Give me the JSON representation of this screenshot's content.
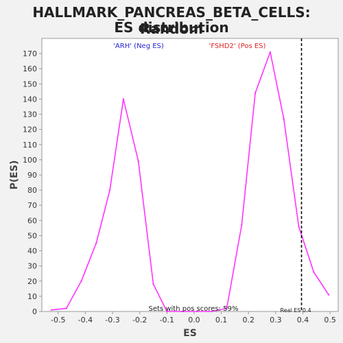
{
  "title_line1": "HALLMARK_PANCREAS_BETA_CELLS: Random",
  "title_line2": "ES distribution",
  "chart_data": {
    "type": "line",
    "title": "HALLMARK_PANCREAS_BETA_CELLS: Random ES distribution",
    "xlabel": "ES",
    "ylabel": "P(ES)",
    "xlim": [
      -0.56,
      0.53
    ],
    "ylim": [
      0,
      180
    ],
    "x_ticks": [
      "-0.5",
      "-0.4",
      "-0.3",
      "-0.2",
      "-0.1",
      "0.0",
      "0.1",
      "0.2",
      "0.3",
      "0.4",
      "0.5"
    ],
    "y_ticks": [
      "0",
      "10",
      "20",
      "30",
      "40",
      "50",
      "60",
      "70",
      "80",
      "90",
      "100",
      "110",
      "120",
      "130",
      "140",
      "150",
      "160",
      "170"
    ],
    "grid": false,
    "series": [
      {
        "color": "#ff33ff",
        "x": [
          -0.525,
          -0.47,
          -0.415,
          -0.36,
          -0.31,
          -0.26,
          -0.205,
          -0.15,
          -0.1,
          -0.045,
          0.01,
          0.065,
          0.12,
          0.175,
          0.225,
          0.28,
          0.33,
          0.385,
          0.44,
          0.495
        ],
        "y": [
          1,
          2,
          20,
          45,
          80,
          140,
          99,
          18,
          0,
          0,
          0,
          0,
          2,
          57,
          144,
          171,
          127,
          56,
          26,
          11
        ]
      }
    ],
    "real_es": 0.395,
    "annotations": {
      "neg_label": "'ARH' (Neg ES)",
      "pos_label": "'FSHD2' (Pos ES)",
      "pos_scores": "Sets with pos scores: 59%",
      "real_es_label": "Real ES 0.4"
    },
    "colors": {
      "neg": "#2222cc",
      "pos": "#dd2222",
      "line": "#ff33ff",
      "marker": "#000000"
    }
  }
}
